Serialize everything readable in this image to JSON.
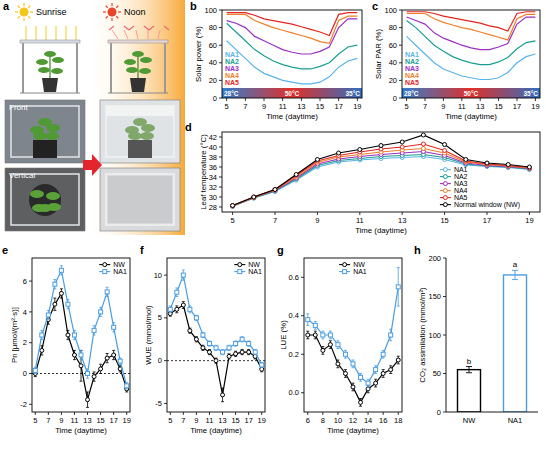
{
  "illustration": {
    "panel": "a",
    "labels": {
      "sunrise": "Sunrise",
      "noon": "Noon",
      "front": "Front",
      "vertical": "Vertical"
    }
  },
  "chart_data": [
    {
      "panel": "b",
      "type": "line",
      "y_label": "Solar power (%)",
      "x_label": "Time (daytime)",
      "x": [
        5,
        6,
        7,
        8,
        9,
        10,
        11,
        12,
        13,
        14,
        15,
        16,
        17,
        18,
        19
      ],
      "xlim": [
        4.5,
        19.5
      ],
      "xticks": [
        5,
        7,
        9,
        11,
        13,
        15,
        17,
        19
      ],
      "ylim": [
        0,
        100
      ],
      "yticks": [
        0,
        20,
        40,
        60,
        80,
        100
      ],
      "legend": "left",
      "temperature_labels": [
        "28°C",
        "50°C",
        "35°C"
      ],
      "series": [
        {
          "name": "NA1",
          "color": "#5ab4e8",
          "values": [
            65,
            55,
            45,
            35,
            28,
            24,
            20,
            18,
            16,
            16,
            18,
            24,
            35,
            42,
            45
          ]
        },
        {
          "name": "NA2",
          "color": "#1a9e8f",
          "values": [
            85,
            75,
            65,
            55,
            48,
            42,
            38,
            35,
            33,
            33,
            36,
            40,
            50,
            58,
            60
          ]
        },
        {
          "name": "NA3",
          "color": "#9a2fc4",
          "values": [
            88,
            85,
            80,
            70,
            65,
            60,
            55,
            52,
            50,
            50,
            53,
            58,
            80,
            90,
            90
          ]
        },
        {
          "name": "NA4",
          "color": "#f07f2a",
          "values": [
            95,
            95,
            95,
            88,
            84,
            80,
            77,
            74,
            71,
            68,
            64,
            62,
            88,
            93,
            93
          ]
        },
        {
          "name": "NA5",
          "color": "#e3261f",
          "values": [
            97,
            97,
            97,
            94,
            90,
            88,
            86,
            84,
            81,
            78,
            75,
            71,
            95,
            97,
            97
          ]
        }
      ]
    },
    {
      "panel": "c",
      "type": "line",
      "y_label": "Solar PAR (%)",
      "x_label": "Time (daytime)",
      "x": [
        5,
        6,
        7,
        8,
        9,
        10,
        11,
        12,
        13,
        14,
        15,
        16,
        17,
        18,
        19
      ],
      "xlim": [
        4.5,
        19.5
      ],
      "xticks": [
        5,
        7,
        9,
        11,
        13,
        15,
        17,
        19
      ],
      "ylim": [
        0,
        100
      ],
      "yticks": [
        0,
        20,
        40,
        60,
        80,
        100
      ],
      "legend": "left",
      "temperature_labels": [
        "28°C",
        "50°C",
        "35°C"
      ],
      "series": [
        {
          "name": "NA1",
          "color": "#5ab4e8",
          "values": [
            70,
            60,
            50,
            40,
            33,
            29,
            25,
            23,
            21,
            21,
            23,
            29,
            40,
            47,
            50
          ]
        },
        {
          "name": "NA2",
          "color": "#1a9e8f",
          "values": [
            88,
            80,
            70,
            60,
            53,
            47,
            43,
            40,
            38,
            38,
            41,
            46,
            56,
            63,
            65
          ]
        },
        {
          "name": "NA3",
          "color": "#9a2fc4",
          "values": [
            92,
            88,
            84,
            74,
            68,
            64,
            60,
            57,
            55,
            55,
            58,
            62,
            84,
            92,
            92
          ]
        },
        {
          "name": "NA4",
          "color": "#f07f2a",
          "values": [
            96,
            96,
            96,
            90,
            86,
            83,
            80,
            78,
            75,
            72,
            69,
            66,
            90,
            95,
            95
          ]
        },
        {
          "name": "NA5",
          "color": "#e3261f",
          "values": [
            98,
            98,
            98,
            96,
            93,
            91,
            89,
            87,
            85,
            82,
            80,
            76,
            96,
            98,
            98
          ]
        }
      ]
    },
    {
      "panel": "d",
      "type": "line",
      "y_label": "Leaf temperature (°C)",
      "x_label": "Time (daytime)",
      "x": [
        5,
        6,
        7,
        8,
        9,
        10,
        11,
        12,
        13,
        14,
        15,
        16,
        17,
        18,
        19
      ],
      "xlim": [
        4.5,
        19.5
      ],
      "xticks": [
        5,
        7,
        9,
        11,
        13,
        15,
        17,
        19
      ],
      "ylim": [
        27,
        43
      ],
      "yticks": [
        28,
        30,
        32,
        34,
        36,
        38,
        40,
        42
      ],
      "legend": "lower right",
      "marker": "circle",
      "series": [
        {
          "name": "NA1",
          "color": "#5ab4e8",
          "values": [
            28.1,
            29.8,
            31.1,
            33.4,
            36,
            37,
            37.4,
            37.7,
            37.9,
            38.1,
            37.5,
            36.4,
            36.1,
            35.9,
            35.5
          ]
        },
        {
          "name": "NA2",
          "color": "#1a9e8f",
          "values": [
            28.2,
            29.8,
            31.2,
            33.6,
            36.3,
            37.3,
            37.7,
            38.1,
            38.3,
            38.5,
            37.9,
            36.6,
            36.2,
            36,
            35.6
          ]
        },
        {
          "name": "NA3",
          "color": "#9a2fc4",
          "values": [
            28.2,
            29.9,
            31.3,
            33.8,
            36.6,
            37.6,
            38.1,
            38.5,
            38.8,
            39.1,
            38.3,
            36.8,
            36.3,
            36.1,
            35.7
          ]
        },
        {
          "name": "NA4",
          "color": "#f07f2a",
          "values": [
            28.2,
            29.9,
            31.4,
            34,
            36.9,
            38,
            38.5,
            39,
            39.4,
            39.7,
            38.8,
            37,
            36.5,
            36.2,
            35.8
          ]
        },
        {
          "name": "NA5",
          "color": "#e3261f",
          "values": [
            28.3,
            30,
            31.5,
            34.3,
            37.2,
            38.3,
            39,
            39.6,
            40,
            40.6,
            39.3,
            37.2,
            36.6,
            36.3,
            35.9
          ]
        },
        {
          "name": "Normal window (NW)",
          "color": "#000000",
          "values": [
            28.3,
            30,
            31.5,
            34.5,
            37.5,
            38.8,
            39.5,
            40.3,
            41,
            42.4,
            40.5,
            37.5,
            36.8,
            36.5,
            36
          ]
        }
      ]
    },
    {
      "panel": "e",
      "type": "line",
      "y_label": "Pn [μmol/(m²·s)]",
      "x_label": "Time (daytime)",
      "x": [
        5,
        6,
        7,
        8,
        9,
        10,
        11,
        12,
        13,
        14,
        15,
        16,
        17,
        18,
        19
      ],
      "xlim": [
        4.5,
        19.5
      ],
      "xticks": [
        5,
        7,
        9,
        11,
        13,
        15,
        17,
        19
      ],
      "ylim": [
        -2.5,
        7.5
      ],
      "yticks": [
        -2,
        0,
        2,
        4,
        6
      ],
      "legend": "upper right",
      "reference_y": 0,
      "series": [
        {
          "name": "NW",
          "color": "#000000",
          "marker": "circle",
          "values": [
            0,
            1.5,
            3.5,
            4.5,
            5.2,
            2.5,
            1.2,
            0.5,
            -1.7,
            -0.2,
            0.3,
            1,
            1.2,
            0.3,
            -1
          ],
          "errors": [
            0.2,
            0.3,
            0.3,
            0.4,
            0.3,
            0.3,
            0.3,
            1,
            0.5,
            0.3,
            0.3,
            0.3,
            0.3,
            0.2,
            0.2
          ]
        },
        {
          "name": "NA1",
          "color": "#4a9de0",
          "marker": "square",
          "values": [
            0.2,
            2.5,
            3.8,
            5.8,
            6.7,
            4.5,
            2.5,
            1.2,
            0,
            2.8,
            4,
            5.3,
            3,
            0.8,
            -0.8
          ],
          "errors": [
            0.2,
            0.3,
            0.3,
            0.3,
            0.3,
            0.3,
            0.3,
            0.3,
            0.3,
            0.3,
            0.3,
            0.3,
            0.3,
            0.2,
            0.2
          ]
        }
      ]
    },
    {
      "panel": "f",
      "type": "line",
      "y_label": "WUE (mmol/mol)",
      "x_label": "Time (daytime)",
      "x": [
        5,
        6,
        7,
        8,
        9,
        10,
        11,
        12,
        13,
        14,
        15,
        16,
        17,
        18,
        19
      ],
      "xlim": [
        4.5,
        19.5
      ],
      "xticks": [
        5,
        7,
        9,
        11,
        13,
        15,
        17,
        19
      ],
      "ylim": [
        -6,
        12
      ],
      "yticks": [
        -5,
        0,
        5,
        10
      ],
      "legend": "upper right",
      "reference_y": 0,
      "series": [
        {
          "name": "NW",
          "color": "#000000",
          "marker": "circle",
          "values": [
            5.5,
            6,
            6.5,
            3.5,
            2.5,
            1.5,
            1,
            0,
            -4,
            0.5,
            0.8,
            1,
            1,
            0.5,
            -1
          ],
          "errors": [
            0.3,
            0.4,
            0.4,
            0.3,
            0.3,
            0.3,
            0.3,
            0.3,
            0.8,
            0.3,
            0.3,
            0.3,
            0.3,
            0.3,
            0.3
          ]
        },
        {
          "name": "NA1",
          "color": "#4a9de0",
          "marker": "square",
          "values": [
            6,
            8,
            10,
            6,
            5,
            3,
            2,
            1.5,
            1,
            1.5,
            2,
            2.5,
            2,
            1,
            -0.5
          ],
          "errors": [
            0.4,
            0.5,
            0.6,
            0.4,
            0.3,
            0.3,
            0.3,
            0.3,
            0.3,
            0.3,
            0.3,
            0.3,
            0.3,
            0.3,
            0.3
          ]
        }
      ]
    },
    {
      "panel": "g",
      "type": "line",
      "y_label": "LUE (%)",
      "x_label": "Time (daytime)",
      "x": [
        6,
        7,
        8,
        9,
        10,
        11,
        12,
        13,
        14,
        15,
        16,
        17,
        18
      ],
      "xlim": [
        5.5,
        18.5
      ],
      "xticks": [
        6,
        8,
        10,
        12,
        14,
        16,
        18
      ],
      "ylim": [
        -0.1,
        0.7
      ],
      "yticks": [
        {
          "value": 0,
          "label": "0.0"
        },
        0.2,
        0.4,
        0.6
      ],
      "legend": "upper center",
      "series": [
        {
          "name": "NW",
          "color": "#000000",
          "marker": "circle",
          "values": [
            0.3,
            0.3,
            0.22,
            0.25,
            0.15,
            0.1,
            0.03,
            -0.05,
            0.02,
            0.05,
            0.1,
            0.12,
            0.17
          ],
          "errors": [
            0.02,
            0.02,
            0.02,
            0.02,
            0.02,
            0.02,
            0.02,
            0.02,
            0.02,
            0.02,
            0.02,
            0.02,
            0.02
          ]
        },
        {
          "name": "NA1",
          "color": "#4a9de0",
          "marker": "square",
          "values": [
            0.38,
            0.35,
            0.3,
            0.3,
            0.25,
            0.2,
            0.15,
            0.08,
            0.05,
            0.12,
            0.2,
            0.3,
            0.55
          ],
          "errors": [
            0.03,
            0.02,
            0.02,
            0.02,
            0.02,
            0.02,
            0.02,
            0.02,
            0.02,
            0.02,
            0.02,
            0.03,
            0.1
          ]
        }
      ]
    },
    {
      "panel": "h",
      "type": "bar",
      "y_label": "CO₂ assimilation (mmol/m²)",
      "categories": [
        "NW",
        "NA1"
      ],
      "values": [
        55,
        178
      ],
      "errors": [
        4,
        6
      ],
      "colors": [
        "#000000",
        "#4a9de0"
      ],
      "significance": [
        "b",
        "a"
      ],
      "ylim": [
        0,
        200
      ],
      "yticks": [
        0,
        50,
        100,
        150,
        200
      ]
    }
  ]
}
